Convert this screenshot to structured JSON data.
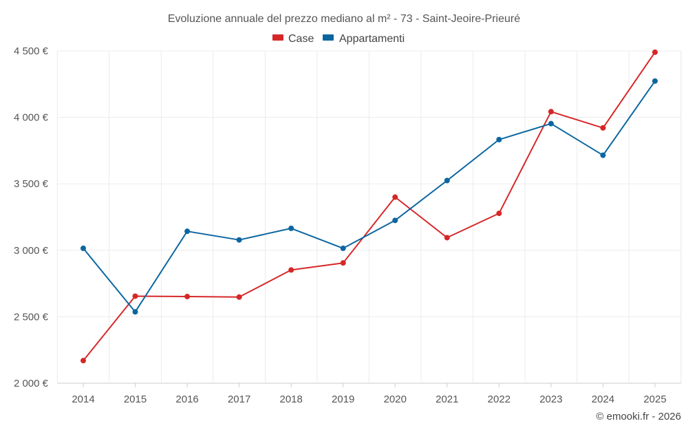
{
  "chart_data": {
    "type": "line",
    "title": "Evoluzione annuale del prezzo mediano al m² - 73 - Saint-Jeoire-Prieuré",
    "categories": [
      "2014",
      "2015",
      "2016",
      "2017",
      "2018",
      "2019",
      "2020",
      "2021",
      "2022",
      "2023",
      "2024",
      "2025"
    ],
    "series": [
      {
        "name": "Case",
        "color": "#d62728",
        "values": [
          2170,
          2655,
          2652,
          2648,
          2852,
          2905,
          3400,
          3095,
          3278,
          4043,
          3921,
          4490
        ]
      },
      {
        "name": "Appartamenti",
        "color": "#0b66a0",
        "values": [
          3015,
          2537,
          3143,
          3078,
          3165,
          3015,
          3225,
          3525,
          3833,
          3953,
          3715,
          4273
        ]
      }
    ],
    "ylim": [
      2000,
      4500
    ],
    "yticks": [
      2000,
      2500,
      3000,
      3500,
      4000,
      4500
    ],
    "ytick_labels": [
      "2 000 €",
      "2 500 €",
      "3 000 €",
      "3 500 €",
      "4 000 €",
      "4 500 €"
    ],
    "xlabel": "",
    "ylabel": "",
    "grid": true,
    "legend_position": "top-center"
  },
  "credit": "© emooki.fr - 2026"
}
